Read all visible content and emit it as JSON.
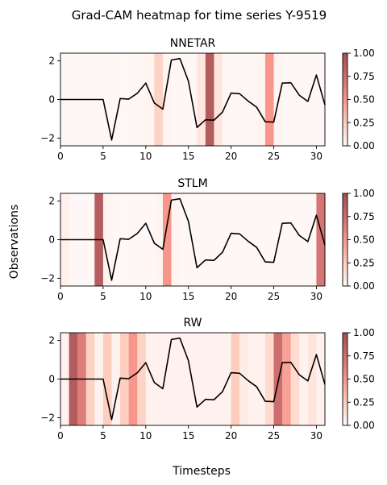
{
  "figure": {
    "suptitle": "Grad-CAM heatmap for time series Y-9519",
    "xlabel": "Timesteps",
    "ylabel": "Observations"
  },
  "chart_data": [
    {
      "type": "line",
      "title": "NNETAR",
      "xlim": [
        0,
        31
      ],
      "ylim": [
        -2.4,
        2.4
      ],
      "xticks": [
        0,
        5,
        10,
        15,
        20,
        25,
        30
      ],
      "yticks": [
        -2,
        0,
        2
      ],
      "heat": [
        0.02,
        0.02,
        0.02,
        0.02,
        0.02,
        0.02,
        0.02,
        0.02,
        0.02,
        0.02,
        0.04,
        0.22,
        0.04,
        0.02,
        0.02,
        0.02,
        0.12,
        0.9,
        0.12,
        0.02,
        0.02,
        0.02,
        0.02,
        0.04,
        0.5,
        0.04,
        0.02,
        0.02,
        0.02,
        0.02,
        0.02
      ],
      "colorbar": {
        "vmin": 0,
        "vmax": 1,
        "ticks": [
          "0.00",
          "0.25",
          "0.50",
          "0.75",
          "1.00"
        ]
      }
    },
    {
      "type": "line",
      "title": "STLM",
      "xlim": [
        0,
        31
      ],
      "ylim": [
        -2.4,
        2.4
      ],
      "xticks": [
        0,
        5,
        10,
        15,
        20,
        25,
        30
      ],
      "yticks": [
        -2,
        0,
        2
      ],
      "heat": [
        0.06,
        0.02,
        0.02,
        0.02,
        0.88,
        0.04,
        0.02,
        0.02,
        0.02,
        0.02,
        0.02,
        0.04,
        0.5,
        0.04,
        0.02,
        0.02,
        0.02,
        0.02,
        0.02,
        0.02,
        0.02,
        0.02,
        0.02,
        0.02,
        0.02,
        0.02,
        0.02,
        0.02,
        0.02,
        0.02,
        0.7
      ],
      "colorbar": {
        "vmin": 0,
        "vmax": 1,
        "ticks": [
          "0.00",
          "0.25",
          "0.50",
          "0.75",
          "1.00"
        ]
      }
    },
    {
      "type": "line",
      "title": "RW",
      "xlim": [
        0,
        31
      ],
      "ylim": [
        -2.4,
        2.4
      ],
      "xticks": [
        0,
        5,
        10,
        15,
        20,
        25,
        30
      ],
      "yticks": [
        -2,
        0,
        2
      ],
      "heat": [
        0.05,
        0.9,
        0.65,
        0.22,
        0.05,
        0.25,
        0.05,
        0.25,
        0.5,
        0.22,
        0.05,
        0.05,
        0.05,
        0.05,
        0.05,
        0.05,
        0.05,
        0.05,
        0.05,
        0.05,
        0.25,
        0.08,
        0.05,
        0.05,
        0.18,
        0.75,
        0.45,
        0.18,
        0.05,
        0.12,
        0.05
      ],
      "colorbar": {
        "vmin": 0,
        "vmax": 1,
        "ticks": [
          "0.00",
          "0.25",
          "0.50",
          "0.75",
          "1.00"
        ]
      }
    }
  ],
  "series": {
    "x": [
      0,
      1,
      2,
      3,
      4,
      5,
      6,
      7,
      8,
      9,
      10,
      11,
      12,
      13,
      14,
      15,
      16,
      17,
      18,
      19,
      20,
      21,
      22,
      23,
      24,
      25,
      26,
      27,
      28,
      29,
      30,
      31
    ],
    "y": [
      0,
      0,
      0,
      0,
      0,
      0,
      -2.1,
      0.05,
      0.02,
      0.32,
      0.85,
      -0.18,
      -0.5,
      2.05,
      2.12,
      0.95,
      -1.45,
      -1.05,
      -1.07,
      -0.65,
      0.33,
      0.3,
      -0.08,
      -0.4,
      -1.15,
      -1.17,
      0.85,
      0.87,
      0.22,
      -0.1,
      1.27,
      -0.28
    ]
  }
}
